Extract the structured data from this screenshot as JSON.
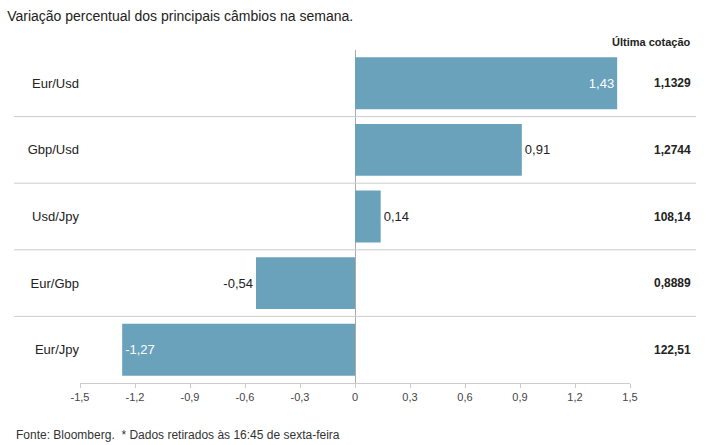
{
  "chart_data": {
    "type": "bar",
    "orientation": "horizontal",
    "title": "Variação percentual dos principais câmbios na semana.",
    "categories": [
      "Eur/Usd",
      "Gbp/Usd",
      "Usd/Jpy",
      "Eur/Gbp",
      "Eur/Jpy"
    ],
    "values": [
      1.43,
      0.91,
      0.14,
      -0.54,
      -1.27
    ],
    "value_labels": [
      "1,43",
      "0,91",
      "0,14",
      "-0,54",
      "-1,27"
    ],
    "data_labels": true,
    "color": "#6aa2bc",
    "xlim": [
      -1.5,
      1.5
    ],
    "xticks": [
      {
        "value": -1.5,
        "label": "-1,5"
      },
      {
        "value": -1.2,
        "label": "-1,2"
      },
      {
        "value": -0.9,
        "label": "-0,9"
      },
      {
        "value": -0.6,
        "label": "-0,6"
      },
      {
        "value": -0.3,
        "label": "-0,3"
      },
      0,
      {
        "value": 0.3,
        "label": "0,3"
      },
      {
        "value": 0.6,
        "label": "0,6"
      },
      {
        "value": 0.9,
        "label": "0,9"
      },
      {
        "value": 1.2,
        "label": "1,2"
      },
      {
        "value": 1.5,
        "label": "1,5"
      }
    ],
    "grid": false,
    "last_quote_header": "Última cotação",
    "last_quotes": [
      "1,1329",
      "1,2744",
      "108,14",
      "0,8889",
      "122,51"
    ],
    "source": "Fonte: Bloomberg.  * Dados retirados às 16:45 de sexta-feira"
  }
}
